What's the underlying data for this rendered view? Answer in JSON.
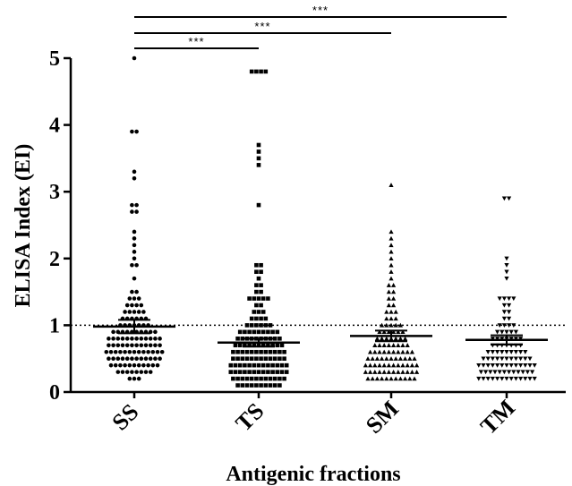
{
  "chart_data": {
    "type": "scatter",
    "subtype": "dot-plot with mean and SEM",
    "xlabel": "Antigenic fractions",
    "ylabel": "ELISA Index (EI)",
    "categories": [
      "SS",
      "TS",
      "SM",
      "TM"
    ],
    "ylim": [
      0,
      5
    ],
    "yticks": [
      "0",
      "1",
      "2",
      "3",
      "4",
      "5"
    ],
    "cutoff": 1.0,
    "series": [
      {
        "category": "SS",
        "marker": "circle",
        "mean": 0.98,
        "sem": 0.1,
        "values": [
          5.0,
          3.9,
          3.9,
          3.3,
          3.2,
          2.8,
          2.8,
          2.7,
          2.7,
          2.4,
          2.3,
          2.2,
          2.1,
          2.0,
          1.9,
          1.9,
          1.7,
          1.5,
          1.5,
          1.4,
          1.4,
          1.4,
          1.3,
          1.3,
          1.3,
          1.3,
          1.2,
          1.2,
          1.2,
          1.2,
          1.2,
          1.1,
          1.1,
          1.1,
          1.1,
          1.1,
          1.1,
          1.0,
          1.0,
          1.0,
          1.0,
          1.0,
          1.0,
          1.0,
          0.9,
          0.9,
          0.9,
          0.9,
          0.9,
          0.9,
          0.9,
          0.9,
          0.9,
          0.9,
          0.8,
          0.8,
          0.8,
          0.8,
          0.8,
          0.8,
          0.8,
          0.8,
          0.8,
          0.8,
          0.8,
          0.8,
          0.7,
          0.7,
          0.7,
          0.7,
          0.7,
          0.7,
          0.7,
          0.7,
          0.7,
          0.7,
          0.7,
          0.7,
          0.6,
          0.6,
          0.6,
          0.6,
          0.6,
          0.6,
          0.6,
          0.6,
          0.6,
          0.6,
          0.6,
          0.6,
          0.6,
          0.5,
          0.5,
          0.5,
          0.5,
          0.5,
          0.5,
          0.5,
          0.5,
          0.5,
          0.5,
          0.5,
          0.5,
          0.4,
          0.4,
          0.4,
          0.4,
          0.4,
          0.4,
          0.4,
          0.4,
          0.4,
          0.4,
          0.4,
          0.3,
          0.3,
          0.3,
          0.3,
          0.3,
          0.3,
          0.3,
          0.3,
          0.2,
          0.2,
          0.2
        ]
      },
      {
        "category": "TS",
        "marker": "square",
        "mean": 0.74,
        "sem": 0.06,
        "values": [
          4.8,
          4.8,
          4.8,
          4.8,
          3.7,
          3.6,
          3.5,
          3.4,
          2.8,
          1.9,
          1.9,
          1.8,
          1.8,
          1.7,
          1.6,
          1.6,
          1.5,
          1.5,
          1.4,
          1.4,
          1.4,
          1.4,
          1.4,
          1.3,
          1.3,
          1.2,
          1.2,
          1.2,
          1.1,
          1.1,
          1.1,
          1.1,
          1.0,
          1.0,
          1.0,
          1.0,
          1.0,
          1.0,
          0.9,
          0.9,
          0.9,
          0.9,
          0.9,
          0.9,
          0.9,
          0.9,
          0.9,
          0.8,
          0.8,
          0.8,
          0.8,
          0.8,
          0.8,
          0.8,
          0.8,
          0.8,
          0.8,
          0.7,
          0.7,
          0.7,
          0.7,
          0.7,
          0.7,
          0.7,
          0.7,
          0.7,
          0.7,
          0.7,
          0.6,
          0.6,
          0.6,
          0.6,
          0.6,
          0.6,
          0.6,
          0.6,
          0.6,
          0.6,
          0.6,
          0.6,
          0.5,
          0.5,
          0.5,
          0.5,
          0.5,
          0.5,
          0.5,
          0.5,
          0.5,
          0.5,
          0.5,
          0.5,
          0.4,
          0.4,
          0.4,
          0.4,
          0.4,
          0.4,
          0.4,
          0.4,
          0.4,
          0.4,
          0.4,
          0.4,
          0.4,
          0.3,
          0.3,
          0.3,
          0.3,
          0.3,
          0.3,
          0.3,
          0.3,
          0.3,
          0.3,
          0.3,
          0.3,
          0.3,
          0.2,
          0.2,
          0.2,
          0.2,
          0.2,
          0.2,
          0.2,
          0.2,
          0.2,
          0.2,
          0.2,
          0.2,
          0.1,
          0.1,
          0.1,
          0.1,
          0.1,
          0.1,
          0.1,
          0.1,
          0.1,
          0.1
        ]
      },
      {
        "category": "SM",
        "marker": "triangle-up",
        "mean": 0.84,
        "sem": 0.08,
        "values": [
          3.1,
          2.4,
          2.3,
          2.2,
          2.1,
          2.0,
          1.9,
          1.8,
          1.7,
          1.6,
          1.6,
          1.5,
          1.5,
          1.4,
          1.4,
          1.3,
          1.3,
          1.2,
          1.2,
          1.2,
          1.1,
          1.1,
          1.1,
          1.0,
          1.0,
          1.0,
          1.0,
          1.0,
          0.9,
          0.9,
          0.9,
          0.9,
          0.9,
          0.9,
          0.8,
          0.8,
          0.8,
          0.8,
          0.8,
          0.8,
          0.8,
          0.7,
          0.7,
          0.7,
          0.7,
          0.7,
          0.7,
          0.7,
          0.7,
          0.6,
          0.6,
          0.6,
          0.6,
          0.6,
          0.6,
          0.6,
          0.6,
          0.6,
          0.6,
          0.5,
          0.5,
          0.5,
          0.5,
          0.5,
          0.5,
          0.5,
          0.5,
          0.5,
          0.5,
          0.5,
          0.4,
          0.4,
          0.4,
          0.4,
          0.4,
          0.4,
          0.4,
          0.4,
          0.4,
          0.4,
          0.4,
          0.4,
          0.3,
          0.3,
          0.3,
          0.3,
          0.3,
          0.3,
          0.3,
          0.3,
          0.3,
          0.3,
          0.3,
          0.3,
          0.2,
          0.2,
          0.2,
          0.2,
          0.2,
          0.2,
          0.2,
          0.2,
          0.2,
          0.2,
          0.2
        ]
      },
      {
        "category": "TM",
        "marker": "triangle-down",
        "mean": 0.78,
        "sem": 0.07,
        "values": [
          2.9,
          2.9,
          2.0,
          1.9,
          1.8,
          1.7,
          1.4,
          1.4,
          1.4,
          1.4,
          1.3,
          1.3,
          1.2,
          1.2,
          1.1,
          1.1,
          1.0,
          1.0,
          1.0,
          1.0,
          0.9,
          0.9,
          0.9,
          0.9,
          0.9,
          0.8,
          0.8,
          0.8,
          0.8,
          0.8,
          0.8,
          0.8,
          0.7,
          0.7,
          0.7,
          0.7,
          0.7,
          0.7,
          0.7,
          0.6,
          0.6,
          0.6,
          0.6,
          0.6,
          0.6,
          0.6,
          0.6,
          0.6,
          0.5,
          0.5,
          0.5,
          0.5,
          0.5,
          0.5,
          0.5,
          0.5,
          0.5,
          0.5,
          0.5,
          0.4,
          0.4,
          0.4,
          0.4,
          0.4,
          0.4,
          0.4,
          0.4,
          0.4,
          0.4,
          0.4,
          0.4,
          0.4,
          0.3,
          0.3,
          0.3,
          0.3,
          0.3,
          0.3,
          0.3,
          0.3,
          0.3,
          0.3,
          0.3,
          0.3,
          0.2,
          0.2,
          0.2,
          0.2,
          0.2,
          0.2,
          0.2,
          0.2,
          0.2,
          0.2,
          0.2,
          0.2,
          0.2
        ]
      }
    ],
    "significance": [
      {
        "from": "SS",
        "to": "TS",
        "label": "***"
      },
      {
        "from": "SS",
        "to": "SM",
        "label": "***"
      },
      {
        "from": "SS",
        "to": "TM",
        "label": "***"
      }
    ]
  }
}
